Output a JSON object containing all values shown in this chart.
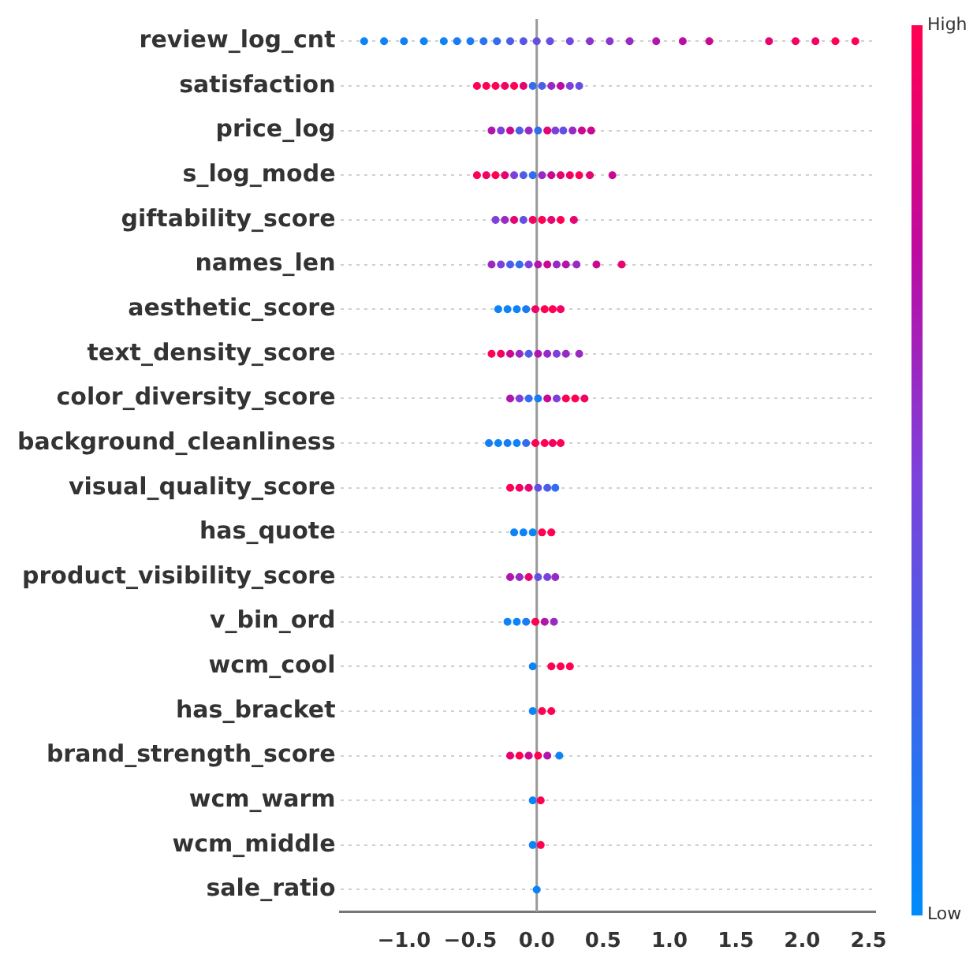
{
  "chart_data": {
    "type": "scatter",
    "orientation": "horizontal",
    "categories": [
      "review_log_cnt",
      "satisfaction",
      "price_log",
      "s_log_mode",
      "giftability_score",
      "names_len",
      "aesthetic_score",
      "text_density_score",
      "color_diversity_score",
      "background_cleanliness",
      "visual_quality_score",
      "has_quote",
      "product_visibility_score",
      "v_bin_ord",
      "wcm_cool",
      "has_bracket",
      "brand_strength_score",
      "wcm_warm",
      "wcm_middle",
      "sale_ratio"
    ],
    "series": [
      {
        "x": [
          "review_log_cnt",
          "review_log_cnt",
          "review_log_cnt",
          "review_log_cnt",
          "review_log_cnt",
          "review_log_cnt",
          "review_log_cnt",
          "review_log_cnt",
          "review_log_cnt",
          "review_log_cnt",
          "review_log_cnt",
          "review_log_cnt",
          "review_log_cnt",
          "review_log_cnt",
          "review_log_cnt",
          "review_log_cnt",
          "review_log_cnt",
          "review_log_cnt",
          "review_log_cnt",
          "review_log_cnt",
          "review_log_cnt",
          "review_log_cnt",
          "review_log_cnt",
          "review_log_cnt",
          "review_log_cnt"
        ],
        "values": [
          -1.3,
          -1.15,
          -1.0,
          -0.85,
          -0.7,
          -0.6,
          -0.5,
          -0.4,
          -0.3,
          -0.2,
          -0.1,
          0.0,
          0.1,
          0.25,
          0.4,
          0.55,
          0.7,
          0.9,
          1.1,
          1.3,
          1.75,
          1.95,
          2.1,
          2.25,
          2.4
        ],
        "colors": [
          "#0d83f8",
          "#0d83f8",
          "#147ef6",
          "#0d83f8",
          "#0d83f8",
          "#197bf5",
          "#197bf5",
          "#2674f2",
          "#326cef",
          "#4c5ee8",
          "#5856e5",
          "#654fe2",
          "#654fe2",
          "#7147df",
          "#8b35d0",
          "#8b35d0",
          "#982ac4",
          "#b115ac",
          "#be0aa0",
          "#cb0890",
          "#e50471",
          "#f20262",
          "#f20262",
          "#ff0052",
          "#ff0052"
        ],
        "cvalues": [
          0.05,
          0.05,
          0.08,
          0.05,
          0.05,
          0.1,
          0.1,
          0.15,
          0.2,
          0.3,
          0.35,
          0.4,
          0.4,
          0.45,
          0.55,
          0.55,
          0.6,
          0.7,
          0.75,
          0.8,
          0.9,
          0.95,
          0.95,
          1,
          1
        ]
      },
      {
        "x": [
          "satisfaction",
          "satisfaction",
          "satisfaction",
          "satisfaction",
          "satisfaction",
          "satisfaction",
          "satisfaction",
          "satisfaction",
          "satisfaction",
          "satisfaction",
          "satisfaction",
          "satisfaction"
        ],
        "values": [
          -0.45,
          -0.38,
          -0.31,
          -0.24,
          -0.17,
          -0.1,
          -0.03,
          0.04,
          0.11,
          0.18,
          0.25,
          0.32
        ],
        "colors": [
          "#ff0052",
          "#ff0052",
          "#ff0052",
          "#f20262",
          "#ff0052",
          "#e50471",
          "#326cef",
          "#4c5ee8",
          "#982ac4",
          "#be0aa0",
          "#7e40dc",
          "#654fe2"
        ],
        "cvalues": [
          1,
          1,
          1,
          0.95,
          1,
          0.9,
          0.2,
          0.3,
          0.6,
          0.75,
          0.5,
          0.4
        ]
      },
      {
        "x": [
          "price_log",
          "price_log",
          "price_log",
          "price_log",
          "price_log",
          "price_log",
          "price_log",
          "price_log",
          "price_log",
          "price_log",
          "price_log",
          "price_log"
        ],
        "values": [
          -0.34,
          -0.27,
          -0.2,
          -0.13,
          -0.06,
          0.01,
          0.08,
          0.14,
          0.2,
          0.27,
          0.34,
          0.41
        ],
        "colors": [
          "#b115ac",
          "#7e40dc",
          "#cb0890",
          "#4c5ee8",
          "#982ac4",
          "#326cef",
          "#e50471",
          "#7e40dc",
          "#654fe2",
          "#982ac4",
          "#cb0890",
          "#cb0890"
        ],
        "cvalues": [
          0.7,
          0.5,
          0.8,
          0.3,
          0.6,
          0.2,
          0.9,
          0.5,
          0.4,
          0.6,
          0.8,
          0.8
        ]
      },
      {
        "x": [
          "s_log_mode",
          "s_log_mode",
          "s_log_mode",
          "s_log_mode",
          "s_log_mode",
          "s_log_mode",
          "s_log_mode",
          "s_log_mode",
          "s_log_mode",
          "s_log_mode",
          "s_log_mode",
          "s_log_mode",
          "s_log_mode",
          "s_log_mode"
        ],
        "values": [
          -0.45,
          -0.38,
          -0.31,
          -0.24,
          -0.17,
          -0.1,
          -0.03,
          0.04,
          0.11,
          0.18,
          0.25,
          0.32,
          0.4,
          0.57
        ],
        "colors": [
          "#ff0052",
          "#f20262",
          "#ff0052",
          "#e50471",
          "#7e40dc",
          "#4c5ee8",
          "#326cef",
          "#982ac4",
          "#cb0890",
          "#e50471",
          "#f20262",
          "#ff0052",
          "#e50471",
          "#cb0890"
        ],
        "cvalues": [
          1,
          0.95,
          1,
          0.9,
          0.5,
          0.3,
          0.2,
          0.6,
          0.8,
          0.9,
          0.95,
          1,
          0.9,
          0.8
        ]
      },
      {
        "x": [
          "giftability_score",
          "giftability_score",
          "giftability_score",
          "giftability_score",
          "giftability_score",
          "giftability_score",
          "giftability_score",
          "giftability_score",
          "giftability_score"
        ],
        "values": [
          -0.31,
          -0.24,
          -0.17,
          -0.1,
          -0.03,
          0.04,
          0.11,
          0.18,
          0.28
        ],
        "colors": [
          "#7e40dc",
          "#982ac4",
          "#e50471",
          "#654fe2",
          "#f20262",
          "#ff0052",
          "#e50471",
          "#ff0052",
          "#e50471"
        ],
        "cvalues": [
          0.5,
          0.6,
          0.9,
          0.4,
          0.95,
          1,
          0.9,
          1,
          0.9
        ]
      },
      {
        "x": [
          "names_len",
          "names_len",
          "names_len",
          "names_len",
          "names_len",
          "names_len",
          "names_len",
          "names_len",
          "names_len",
          "names_len",
          "names_len",
          "names_len"
        ],
        "values": [
          -0.34,
          -0.27,
          -0.2,
          -0.13,
          -0.06,
          0.01,
          0.08,
          0.15,
          0.22,
          0.3,
          0.45,
          0.64
        ],
        "colors": [
          "#982ac4",
          "#7e40dc",
          "#4c5ee8",
          "#326cef",
          "#7e40dc",
          "#b115ac",
          "#cb0890",
          "#982ac4",
          "#b115ac",
          "#982ac4",
          "#cb0890",
          "#e50471"
        ],
        "cvalues": [
          0.6,
          0.5,
          0.3,
          0.2,
          0.5,
          0.7,
          0.8,
          0.6,
          0.7,
          0.6,
          0.8,
          0.9
        ]
      },
      {
        "x": [
          "aesthetic_score",
          "aesthetic_score",
          "aesthetic_score",
          "aesthetic_score",
          "aesthetic_score",
          "aesthetic_score",
          "aesthetic_score",
          "aesthetic_score"
        ],
        "values": [
          -0.29,
          -0.22,
          -0.15,
          -0.08,
          -0.01,
          0.06,
          0.12,
          0.18
        ],
        "colors": [
          "#0d83f8",
          "#0d83f8",
          "#0d83f8",
          "#197bf5",
          "#f20262",
          "#ff0052",
          "#ff0052",
          "#f20262"
        ],
        "cvalues": [
          0.05,
          0.05,
          0.05,
          0.1,
          0.95,
          1,
          1,
          0.95
        ]
      },
      {
        "x": [
          "text_density_score",
          "text_density_score",
          "text_density_score",
          "text_density_score",
          "text_density_score",
          "text_density_score",
          "text_density_score",
          "text_density_score",
          "text_density_score",
          "text_density_score"
        ],
        "values": [
          -0.34,
          -0.27,
          -0.2,
          -0.13,
          -0.06,
          0.01,
          0.08,
          0.15,
          0.22,
          0.32
        ],
        "colors": [
          "#ff0052",
          "#f20262",
          "#cb0890",
          "#982ac4",
          "#4c5ee8",
          "#b115ac",
          "#982ac4",
          "#7e40dc",
          "#982ac4",
          "#982ac4"
        ],
        "cvalues": [
          1,
          0.95,
          0.8,
          0.6,
          0.3,
          0.7,
          0.6,
          0.5,
          0.6,
          0.6
        ]
      },
      {
        "x": [
          "color_diversity_score",
          "color_diversity_score",
          "color_diversity_score",
          "color_diversity_score",
          "color_diversity_score",
          "color_diversity_score",
          "color_diversity_score",
          "color_diversity_score",
          "color_diversity_score"
        ],
        "values": [
          -0.2,
          -0.13,
          -0.06,
          0.01,
          0.08,
          0.15,
          0.22,
          0.29,
          0.36
        ],
        "colors": [
          "#b115ac",
          "#7e40dc",
          "#326cef",
          "#197bf5",
          "#cb0890",
          "#7e40dc",
          "#ff0052",
          "#ff0052",
          "#f20262"
        ],
        "cvalues": [
          0.7,
          0.5,
          0.2,
          0.1,
          0.8,
          0.5,
          1,
          1,
          0.95
        ]
      },
      {
        "x": [
          "background_cleanliness",
          "background_cleanliness",
          "background_cleanliness",
          "background_cleanliness",
          "background_cleanliness",
          "background_cleanliness",
          "background_cleanliness",
          "background_cleanliness",
          "background_cleanliness"
        ],
        "values": [
          -0.36,
          -0.29,
          -0.22,
          -0.15,
          -0.08,
          -0.01,
          0.06,
          0.12,
          0.18
        ],
        "colors": [
          "#197bf5",
          "#0d83f8",
          "#197bf5",
          "#0d83f8",
          "#326cef",
          "#ff0052",
          "#ff0052",
          "#f20262",
          "#ff0052"
        ],
        "cvalues": [
          0.1,
          0.05,
          0.1,
          0.05,
          0.2,
          1,
          1,
          0.95,
          1
        ]
      },
      {
        "x": [
          "visual_quality_score",
          "visual_quality_score",
          "visual_quality_score",
          "visual_quality_score",
          "visual_quality_score",
          "visual_quality_score"
        ],
        "values": [
          -0.2,
          -0.13,
          -0.06,
          0.01,
          0.08,
          0.14
        ],
        "colors": [
          "#ff0052",
          "#f20262",
          "#e50471",
          "#654fe2",
          "#4c5ee8",
          "#326cef"
        ],
        "cvalues": [
          1,
          0.95,
          0.9,
          0.4,
          0.3,
          0.2
        ]
      },
      {
        "x": [
          "has_quote",
          "has_quote",
          "has_quote",
          "has_quote",
          "has_quote"
        ],
        "values": [
          -0.17,
          -0.1,
          -0.03,
          0.04,
          0.11
        ],
        "colors": [
          "#0d83f8",
          "#0d83f8",
          "#0d83f8",
          "#ff0052",
          "#ff0052"
        ],
        "cvalues": [
          0.05,
          0.05,
          0.05,
          1,
          1
        ]
      },
      {
        "x": [
          "product_visibility_score",
          "product_visibility_score",
          "product_visibility_score",
          "product_visibility_score",
          "product_visibility_score",
          "product_visibility_score"
        ],
        "values": [
          -0.2,
          -0.13,
          -0.06,
          0.01,
          0.08,
          0.14
        ],
        "colors": [
          "#b115ac",
          "#982ac4",
          "#e50471",
          "#654fe2",
          "#7e40dc",
          "#982ac4"
        ],
        "cvalues": [
          0.7,
          0.6,
          0.9,
          0.4,
          0.5,
          0.6
        ]
      },
      {
        "x": [
          "v_bin_ord",
          "v_bin_ord",
          "v_bin_ord",
          "v_bin_ord",
          "v_bin_ord",
          "v_bin_ord"
        ],
        "values": [
          -0.22,
          -0.15,
          -0.08,
          -0.01,
          0.06,
          0.13
        ],
        "colors": [
          "#0d83f8",
          "#0d83f8",
          "#197bf5",
          "#ff0052",
          "#b115ac",
          "#982ac4"
        ],
        "cvalues": [
          0.05,
          0.05,
          0.1,
          1,
          0.7,
          0.6
        ]
      },
      {
        "x": [
          "wcm_cool",
          "wcm_cool",
          "wcm_cool",
          "wcm_cool"
        ],
        "values": [
          -0.03,
          0.11,
          0.18,
          0.25
        ],
        "colors": [
          "#0d83f8",
          "#ff0052",
          "#ff0052",
          "#ff0052"
        ],
        "cvalues": [
          0.05,
          1,
          1,
          1
        ]
      },
      {
        "x": [
          "has_bracket",
          "has_bracket",
          "has_bracket"
        ],
        "values": [
          -0.03,
          0.04,
          0.11
        ],
        "colors": [
          "#0d83f8",
          "#ff0052",
          "#ff0052"
        ],
        "cvalues": [
          0.05,
          1,
          1
        ]
      },
      {
        "x": [
          "brand_strength_score",
          "brand_strength_score",
          "brand_strength_score",
          "brand_strength_score",
          "brand_strength_score",
          "brand_strength_score"
        ],
        "values": [
          -0.2,
          -0.13,
          -0.06,
          0.01,
          0.08,
          0.17
        ],
        "colors": [
          "#e50471",
          "#ff0052",
          "#cb0890",
          "#ff0052",
          "#b115ac",
          "#0d83f8"
        ],
        "cvalues": [
          0.9,
          1,
          0.8,
          1,
          0.7,
          0.05
        ]
      },
      {
        "x": [
          "wcm_warm",
          "wcm_warm"
        ],
        "values": [
          -0.03,
          0.03
        ],
        "colors": [
          "#0d83f8",
          "#ff0052"
        ],
        "cvalues": [
          0.05,
          1
        ]
      },
      {
        "x": [
          "wcm_middle",
          "wcm_middle"
        ],
        "values": [
          -0.03,
          0.03
        ],
        "colors": [
          "#0d83f8",
          "#ff0052"
        ],
        "cvalues": [
          0.05,
          1
        ]
      },
      {
        "x": [
          "sale_ratio"
        ],
        "values": [
          0.0
        ],
        "colors": [
          "#0d83f8"
        ],
        "cvalues": [
          0.05
        ]
      }
    ],
    "xlim": [
      -1.48,
      2.55
    ],
    "xticks": [
      {
        "value": -1.0,
        "label": "−1.0"
      },
      {
        "value": -0.5,
        "label": "−0.5"
      },
      {
        "value": 0.0,
        "label": "0.0"
      },
      {
        "value": 0.5,
        "label": "0.5"
      },
      {
        "value": 1.0,
        "label": "1.0"
      },
      {
        "value": 1.5,
        "label": "1.5"
      },
      {
        "value": 2.0,
        "label": "2.0"
      },
      {
        "value": 2.5,
        "label": "2.5"
      }
    ],
    "clim": [
      0,
      1
    ],
    "cticks": [
      {
        "value": 0,
        "label": "Low"
      },
      {
        "value": 1,
        "label": "High"
      }
    ],
    "ref_lines": [
      {
        "axis": "x",
        "value": 0,
        "color": "#999999"
      }
    ],
    "grid": "y",
    "marker": "circle",
    "legend": false
  }
}
